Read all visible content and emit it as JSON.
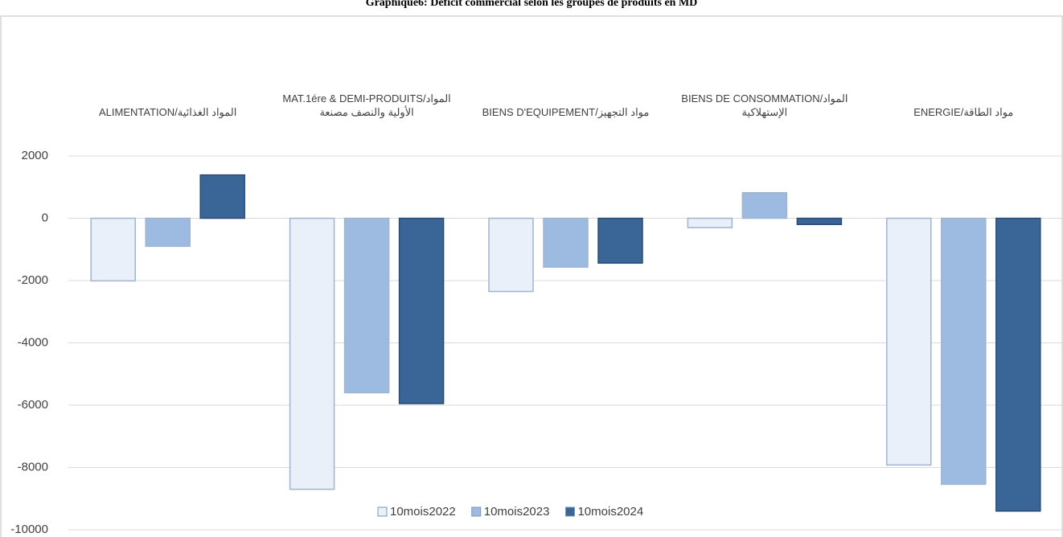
{
  "chart_data": {
    "type": "bar",
    "title": "Graphique6: Déficit commercial selon les groupes de produits en MD",
    "categories": [
      "ALIMENTATION/المواد الغذائية",
      "MAT.1ére & DEMI-PRODUITS/المواد الأولية والنصف مصنعة",
      "BIENS D'EQUIPEMENT/مواد التجهيز",
      "BIENS DE CONSOMMATION/المواد الإستهلاكية",
      "ENERGIE/مواد الطاقة"
    ],
    "series": [
      {
        "name": "10mois2022",
        "color": "#e9f0fa",
        "values": [
          -2010,
          -8700,
          -2350,
          -300,
          -7920
        ]
      },
      {
        "name": "10mois2023",
        "color": "#9dbbe0",
        "values": [
          -900,
          -5600,
          -1570,
          820,
          -8540
        ]
      },
      {
        "name": "10mois2024",
        "color": "#3a6597",
        "values": [
          1390,
          -5950,
          -1440,
          -200,
          -9400
        ]
      }
    ],
    "ylim": [
      -10000,
      2000
    ],
    "yticks": [
      -10000,
      -8000,
      -6000,
      -4000,
      -2000,
      0,
      2000
    ],
    "grid": true,
    "legend": "bottom"
  }
}
